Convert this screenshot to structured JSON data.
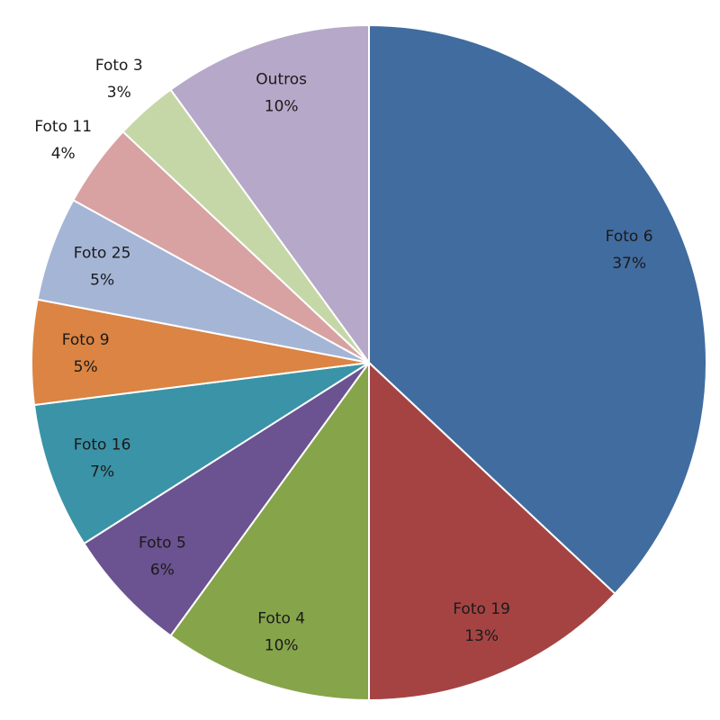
{
  "chart_data": {
    "type": "pie",
    "categories": [
      "Foto 6",
      "Foto 19",
      "Foto 4",
      "Foto 5",
      "Foto 16",
      "Foto 9",
      "Foto 25",
      "Foto 11",
      "Foto 3",
      "Outros"
    ],
    "values": [
      37,
      13,
      10,
      6,
      7,
      5,
      5,
      4,
      3,
      10
    ],
    "value_labels": [
      "37%",
      "13%",
      "10%",
      "6%",
      "7%",
      "5%",
      "5%",
      "4%",
      "3%",
      "10%"
    ],
    "colors": [
      "#416c9f",
      "#a54343",
      "#86a44a",
      "#6b5290",
      "#3b93a7",
      "#db8443",
      "#a5b5d6",
      "#d7a2a1",
      "#c5d7a7",
      "#b6a8c9"
    ]
  }
}
